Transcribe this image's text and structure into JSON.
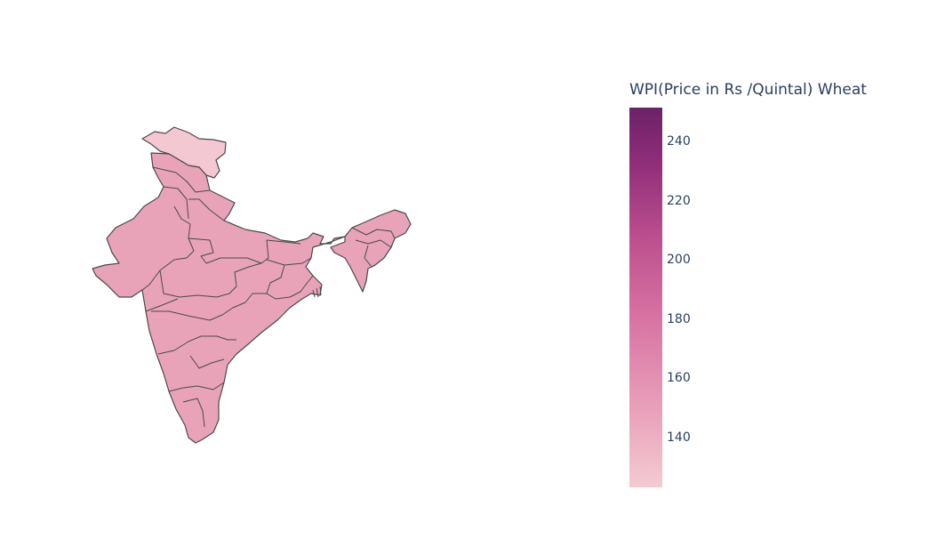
{
  "legend": {
    "title": "WPI(Price in Rs /Quintal) Wheat",
    "ticks": [
      "240",
      "220",
      "200",
      "180",
      "160",
      "140"
    ]
  },
  "colors": {
    "scale_low": "#f3cbd3",
    "scale_mid": "#e18db2",
    "scale_high": "#6c2167",
    "region_fill": "#e8a3b9",
    "northern_region_fill": "#f4c8d2",
    "border": "#4a4a4a"
  },
  "map": {
    "regions": [
      {
        "name": "jammu-kashmir",
        "level": "low"
      },
      {
        "name": "mainland-states",
        "level": "typical"
      },
      {
        "name": "northeast-states",
        "level": "typical"
      }
    ]
  }
}
